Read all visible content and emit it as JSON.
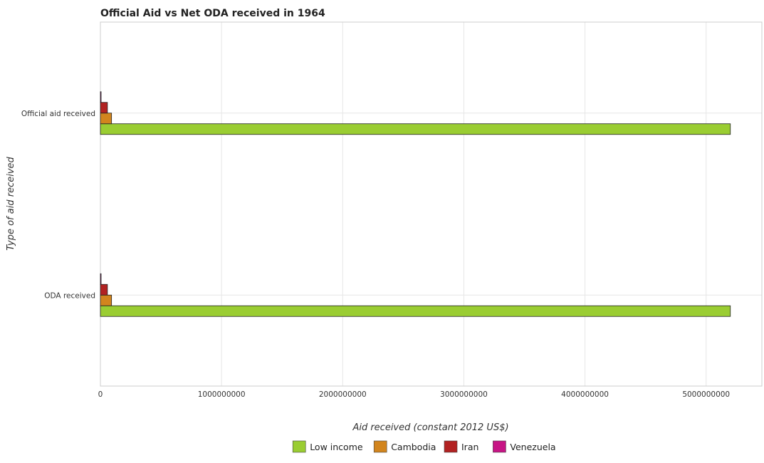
{
  "chart_data": {
    "type": "bar",
    "orientation": "horizontal",
    "title": "Official Aid vs Net ODA received in 1964",
    "xlabel": "Aid received (constant 2012 US$)",
    "ylabel": "Type of aid received",
    "categories": [
      "Official aid received",
      "ODA received"
    ],
    "series": [
      {
        "name": "Low income",
        "color": "#9acd32",
        "values": [
          5200000000,
          5200000000
        ]
      },
      {
        "name": "Cambodia",
        "color": "#d2851e",
        "values": [
          92000000,
          92000000
        ]
      },
      {
        "name": "Iran",
        "color": "#b22222",
        "values": [
          58000000,
          58000000
        ]
      },
      {
        "name": "Venezuela",
        "color": "#c71585",
        "values": [
          1000000,
          1000000
        ]
      }
    ],
    "xlim": [
      0,
      5460000000
    ],
    "xticks": [
      0,
      1000000000,
      2000000000,
      3000000000,
      4000000000,
      5000000000
    ],
    "xtick_labels": [
      "0",
      "1000000000",
      "2000000000",
      "3000000000",
      "4000000000",
      "5000000000"
    ],
    "grid": true,
    "legend_position": "bottom"
  }
}
